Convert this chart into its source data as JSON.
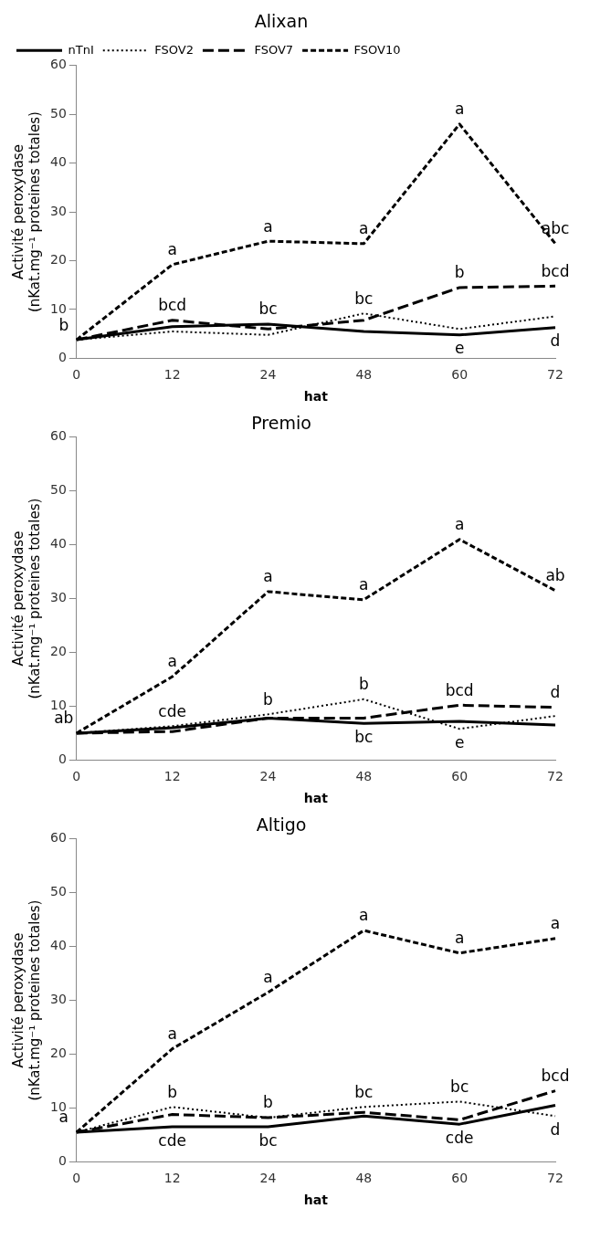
{
  "chart_data": [
    {
      "type": "line",
      "title": "Alixan",
      "xlabel": "hat",
      "ylabel": "Activité peroxydase (nKat.mg⁻¹ proteines totales)",
      "categories": [
        "0",
        "12",
        "24",
        "48",
        "60",
        "72"
      ],
      "ylim": [
        0,
        60
      ],
      "yticks": [
        0,
        10,
        20,
        30,
        40,
        50,
        60
      ],
      "grid": false,
      "legend": "top left",
      "marker": "none",
      "series": [
        {
          "name": "nTnI",
          "color": "#000000",
          "line_style": "solid",
          "values": [
            3.8,
            6.5,
            7,
            5.5,
            4.8,
            6.3
          ]
        },
        {
          "name": "FSOV2",
          "color": "#000000",
          "line_style": "dotted",
          "values": [
            3.8,
            5.5,
            4.8,
            9.2,
            6,
            8.6
          ]
        },
        {
          "name": "FSOV7",
          "color": "#000000",
          "line_style": "dashed",
          "values": [
            3.8,
            7.8,
            6,
            7.8,
            14.5,
            14.8
          ]
        },
        {
          "name": "FSOV10",
          "color": "#000000",
          "line_style": "dashed",
          "values": [
            3.8,
            19.2,
            24,
            23.5,
            48,
            23.5
          ]
        }
      ],
      "annotations": [
        {
          "text": "b",
          "x": "0",
          "y": 3.8
        },
        {
          "text": "bcd",
          "x": "12",
          "y": 7.8
        },
        {
          "text": "bc",
          "x": "24",
          "y": 7
        },
        {
          "text": "bc",
          "x": "48",
          "y": 9.2
        },
        {
          "text": "b",
          "x": "60",
          "y": 14.5
        },
        {
          "text": "bcd",
          "x": "72",
          "y": 14.8
        },
        {
          "text": "a",
          "x": "12",
          "y": 19.2
        },
        {
          "text": "a",
          "x": "24",
          "y": 24
        },
        {
          "text": "a",
          "x": "48",
          "y": 23.5
        },
        {
          "text": "a",
          "x": "60",
          "y": 48
        },
        {
          "text": "abc",
          "x": "72",
          "y": 23.5
        },
        {
          "text": "e",
          "x": "60",
          "y": 4.8
        },
        {
          "text": "d",
          "x": "72",
          "y": 6.3
        }
      ]
    },
    {
      "type": "line",
      "title": "Premio",
      "xlabel": "hat",
      "ylabel": "Activité peroxydase (nKat.mg⁻¹ proteines totales)",
      "categories": [
        "0",
        "12",
        "24",
        "48",
        "60",
        "72"
      ],
      "ylim": [
        0,
        60
      ],
      "yticks": [
        0,
        10,
        20,
        30,
        40,
        50,
        60
      ],
      "grid": false,
      "marker": "none",
      "series": [
        {
          "color": "#000000",
          "line_style": "solid",
          "values": [
            5,
            6,
            7.8,
            6.8,
            7.2,
            6.5
          ]
        },
        {
          "color": "#000000",
          "line_style": "dotted",
          "values": [
            5,
            6.3,
            8.5,
            11.3,
            5.8,
            8.2
          ]
        },
        {
          "color": "#000000",
          "line_style": "dashed",
          "values": [
            5,
            5.3,
            7.8,
            7.8,
            10.2,
            9.8
          ]
        },
        {
          "color": "#000000",
          "line_style": "dashed",
          "values": [
            5,
            15.5,
            31.3,
            29.8,
            41,
            31.5
          ]
        }
      ],
      "annotations": [
        {
          "text": "ab",
          "x": "0",
          "y": 5
        },
        {
          "text": "cde",
          "x": "12",
          "y": 6.3
        },
        {
          "text": "b",
          "x": "24",
          "y": 8.5
        },
        {
          "text": "b",
          "x": "48",
          "y": 11.3
        },
        {
          "text": "bcd",
          "x": "60",
          "y": 10.2
        },
        {
          "text": "d",
          "x": "72",
          "y": 9.8
        },
        {
          "text": "a",
          "x": "12",
          "y": 15.5
        },
        {
          "text": "a",
          "x": "24",
          "y": 31.3
        },
        {
          "text": "a",
          "x": "48",
          "y": 29.8
        },
        {
          "text": "a",
          "x": "60",
          "y": 41
        },
        {
          "text": "ab",
          "x": "72",
          "y": 31.5
        },
        {
          "text": "bc",
          "x": "48",
          "y": 6.8
        },
        {
          "text": "e",
          "x": "60",
          "y": 5.8
        }
      ]
    },
    {
      "type": "line",
      "title": "Altigo",
      "xlabel": "hat",
      "ylabel": "Activité peroxydase (nKat.mg⁻¹ proteines totales)",
      "categories": [
        "0",
        "12",
        "24",
        "48",
        "60",
        "72"
      ],
      "ylim": [
        0,
        60
      ],
      "yticks": [
        0,
        10,
        20,
        30,
        40,
        50,
        60
      ],
      "grid": false,
      "marker": "none",
      "series": [
        {
          "color": "#000000",
          "line_style": "solid",
          "values": [
            5.5,
            6.5,
            6.5,
            8.5,
            7,
            10.5
          ]
        },
        {
          "color": "#000000",
          "line_style": "dotted",
          "values": [
            5.5,
            10.2,
            8.2,
            10.2,
            11.2,
            8.5
          ]
        },
        {
          "color": "#000000",
          "line_style": "dashed",
          "values": [
            5.5,
            8.8,
            8.2,
            9.2,
            7.8,
            13.2
          ]
        },
        {
          "color": "#000000",
          "line_style": "dashed",
          "values": [
            5.5,
            21,
            31.5,
            43,
            38.8,
            41.5
          ]
        }
      ],
      "annotations": [
        {
          "text": "a",
          "x": "0",
          "y": 5.5
        },
        {
          "text": "b",
          "x": "12",
          "y": 10.2
        },
        {
          "text": "b",
          "x": "24",
          "y": 8.2
        },
        {
          "text": "bc",
          "x": "48",
          "y": 10.2
        },
        {
          "text": "bc",
          "x": "60",
          "y": 11.2
        },
        {
          "text": "bcd",
          "x": "72",
          "y": 13.2
        },
        {
          "text": "a",
          "x": "12",
          "y": 21
        },
        {
          "text": "a",
          "x": "24",
          "y": 31.5
        },
        {
          "text": "a",
          "x": "48",
          "y": 43
        },
        {
          "text": "a",
          "x": "60",
          "y": 38.8
        },
        {
          "text": "a",
          "x": "72",
          "y": 41.5
        },
        {
          "text": "cde",
          "x": "12",
          "y": 6.5
        },
        {
          "text": "bc",
          "x": "24",
          "y": 6.5
        },
        {
          "text": "cde",
          "x": "60",
          "y": 7
        },
        {
          "text": "d",
          "x": "72",
          "y": 8.5
        }
      ]
    }
  ]
}
